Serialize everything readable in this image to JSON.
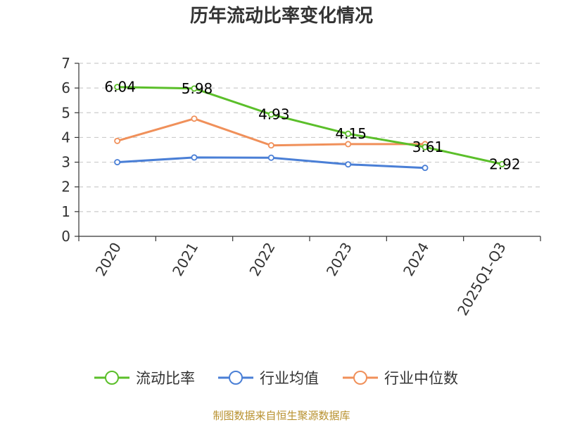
{
  "colors": {
    "current_ratio": "#5bbf2a",
    "industry_avg": "#4a7fd6",
    "industry_median": "#f0905a",
    "axis": "#333333",
    "grid": "#cccccc",
    "source": "#b8912f"
  },
  "chart_data": {
    "type": "line",
    "title": "历年流动比率变化情况",
    "categories": [
      "2020",
      "2021",
      "2022",
      "2023",
      "2024",
      "2025Q1-Q3"
    ],
    "ylim": [
      0,
      7
    ],
    "yticks": [
      0,
      1,
      2,
      3,
      4,
      5,
      6,
      7
    ],
    "grid": true,
    "legend_position": "bottom",
    "series": [
      {
        "name": "流动比率",
        "color_key": "current_ratio",
        "values": [
          6.04,
          5.98,
          4.93,
          4.15,
          3.61,
          2.92
        ],
        "labels": [
          "6.04",
          "5.98",
          "4.93",
          "4.15",
          "3.61",
          "2.92"
        ]
      },
      {
        "name": "行业均值",
        "color_key": "industry_avg",
        "values": [
          3.0,
          3.19,
          3.18,
          2.91,
          2.77,
          null
        ]
      },
      {
        "name": "行业中位数",
        "color_key": "industry_median",
        "values": [
          3.86,
          4.76,
          3.68,
          3.73,
          3.73,
          null
        ]
      }
    ]
  },
  "source_note": "制图数据来自恒生聚源数据库"
}
